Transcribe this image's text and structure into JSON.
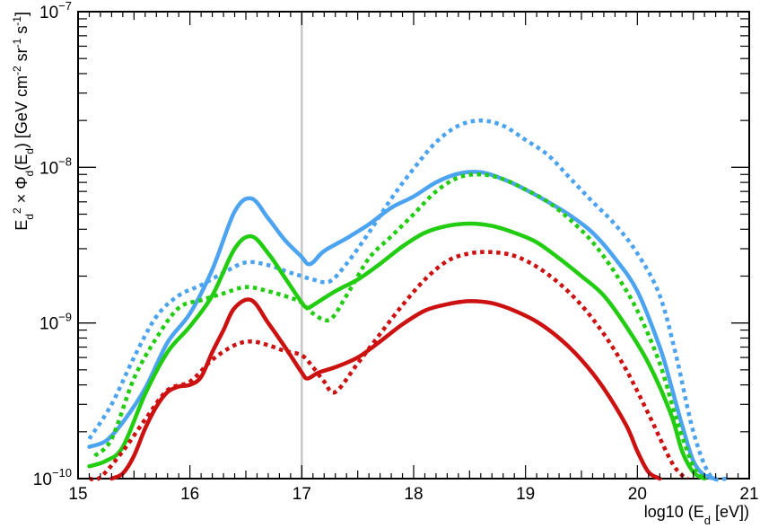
{
  "chart_data": {
    "type": "line",
    "title": "",
    "xlabel": "log10 (E_d [eV])",
    "xlabel_parts": {
      "prefix": "log10 (E",
      "sub": "d",
      "suffix": " [eV])"
    },
    "ylabel": "E_d^2 × Φ_d(E_d) [GeV cm^-2 sr^-1 s^-1]",
    "ylabel_parts": [
      {
        "t": "E",
        "s": ""
      },
      {
        "t": "d",
        "s": "sub"
      },
      {
        "t": "2",
        "s": "sup"
      },
      {
        "t": " × Φ",
        "s": ""
      },
      {
        "t": "d",
        "s": "sub"
      },
      {
        "t": "(E",
        "s": ""
      },
      {
        "t": "d",
        "s": "sub"
      },
      {
        "t": ") [GeV cm",
        "s": ""
      },
      {
        "t": "-2",
        "s": "sup"
      },
      {
        "t": " sr",
        "s": ""
      },
      {
        "t": "-1",
        "s": "sup"
      },
      {
        "t": " s",
        "s": ""
      },
      {
        "t": "-1",
        "s": "sup"
      },
      {
        "t": "]",
        "s": ""
      }
    ],
    "xlim": [
      15,
      21
    ],
    "ylim": [
      1e-10,
      1e-07
    ],
    "yscale": "log",
    "x_ticks": [
      15,
      16,
      17,
      18,
      19,
      20,
      21
    ],
    "x_tick_labels": [
      "15",
      "16",
      "17",
      "18",
      "19",
      "20",
      "21"
    ],
    "y_ticks": [
      {
        "value": 1e-10,
        "base": "10",
        "exp": "−10"
      },
      {
        "value": 1e-09,
        "base": "10",
        "exp": "−9"
      },
      {
        "value": 1e-08,
        "base": "10",
        "exp": "−8"
      },
      {
        "value": 1e-07,
        "base": "10",
        "exp": "−7"
      }
    ],
    "grid": false,
    "legend": "none",
    "vertical_line": {
      "x": 17,
      "color": "#c8c8c8"
    },
    "series": [
      {
        "color": "#4ca3f0",
        "style": "solid",
        "x": [
          15.1,
          15.25,
          15.4,
          15.6,
          15.8,
          16.0,
          16.2,
          16.4,
          16.55,
          16.7,
          16.85,
          17.0,
          17.05,
          17.1,
          17.2,
          17.4,
          17.6,
          17.8,
          18.0,
          18.2,
          18.4,
          18.6,
          18.8,
          19.0,
          19.2,
          19.4,
          19.6,
          19.8,
          20.0,
          20.2,
          20.3,
          20.4,
          20.5,
          20.6,
          20.7
        ],
        "y": [
          1.6e-10,
          1.75e-10,
          2.3e-10,
          3.8e-10,
          7.5e-10,
          1.15e-09,
          2.2e-09,
          5.2e-09,
          6.3e-09,
          4.7e-09,
          3.4e-09,
          2.65e-09,
          2.4e-09,
          2.45e-09,
          2.9e-09,
          3.5e-09,
          4.3e-09,
          5.5e-09,
          6.5e-09,
          8e-09,
          9.1e-09,
          9.3e-09,
          8.4e-09,
          7.2e-09,
          6e-09,
          4.9e-09,
          3.8e-09,
          2.6e-09,
          1.6e-09,
          7e-10,
          4e-10,
          2.2e-10,
          1.3e-10,
          1.05e-10,
          1e-10
        ]
      },
      {
        "color": "#4ca3f0",
        "style": "dotted",
        "x": [
          15.1,
          15.3,
          15.5,
          15.7,
          15.9,
          16.1,
          16.3,
          16.5,
          16.7,
          16.9,
          17.0,
          17.1,
          17.25,
          17.4,
          17.6,
          17.8,
          18.0,
          18.2,
          18.4,
          18.6,
          18.8,
          19.0,
          19.2,
          19.4,
          19.6,
          19.8,
          20.0,
          20.2,
          20.35,
          20.5,
          20.65,
          20.8
        ],
        "y": [
          1.8e-10,
          3e-10,
          6e-10,
          1.1e-09,
          1.5e-09,
          1.75e-09,
          2.1e-09,
          2.45e-09,
          2.35e-09,
          2.1e-09,
          2e-09,
          1.9e-09,
          1.85e-09,
          2.4e-09,
          3.8e-09,
          6.3e-09,
          9.8e-09,
          1.45e-08,
          1.85e-08,
          2e-08,
          1.85e-08,
          1.5e-08,
          1.2e-08,
          8.5e-09,
          6e-09,
          4.3e-09,
          2.8e-09,
          1.5e-09,
          6e-10,
          2e-10,
          1.05e-10,
          1e-10
        ]
      },
      {
        "color": "#22cc11",
        "style": "solid",
        "x": [
          15.1,
          15.25,
          15.4,
          15.6,
          15.8,
          16.0,
          16.2,
          16.4,
          16.55,
          16.7,
          16.85,
          17.0,
          17.05,
          17.1,
          17.3,
          17.5,
          17.7,
          17.9,
          18.1,
          18.3,
          18.5,
          18.7,
          18.9,
          19.1,
          19.3,
          19.5,
          19.7,
          19.9,
          20.1,
          20.3,
          20.4,
          20.5,
          20.6
        ],
        "y": [
          1.2e-10,
          1.3e-10,
          1.6e-10,
          3.5e-10,
          6.5e-10,
          9.5e-10,
          1.5e-09,
          3e-09,
          3.6e-09,
          2.8e-09,
          1.95e-09,
          1.35e-09,
          1.25e-09,
          1.3e-09,
          1.6e-09,
          1.9e-09,
          2.4e-09,
          3.1e-09,
          3.8e-09,
          4.2e-09,
          4.35e-09,
          4.2e-09,
          3.8e-09,
          3.3e-09,
          2.6e-09,
          2e-09,
          1.5e-09,
          9.5e-10,
          5.5e-10,
          2.6e-10,
          1.5e-10,
          1.1e-10,
          1e-10
        ]
      },
      {
        "color": "#22cc11",
        "style": "dotted",
        "x": [
          15.15,
          15.3,
          15.5,
          15.7,
          15.9,
          16.1,
          16.3,
          16.5,
          16.7,
          16.9,
          17.0,
          17.1,
          17.25,
          17.4,
          17.6,
          17.8,
          18.0,
          18.2,
          18.4,
          18.6,
          18.8,
          19.0,
          19.2,
          19.4,
          19.6,
          19.8,
          20.0,
          20.2,
          20.35,
          20.5,
          20.6
        ],
        "y": [
          1.4e-10,
          1.8e-10,
          4.4e-10,
          8e-10,
          1.25e-09,
          1.4e-09,
          1.55e-09,
          1.7e-09,
          1.6e-09,
          1.45e-09,
          1.35e-09,
          1.15e-09,
          1.05e-09,
          1.5e-09,
          2.6e-09,
          3.6e-09,
          5e-09,
          7e-09,
          8.6e-09,
          9e-09,
          8.4e-09,
          7.2e-09,
          6e-09,
          4.6e-09,
          3.3e-09,
          2.1e-09,
          1.2e-09,
          5.5e-10,
          2.4e-10,
          1.2e-10,
          1e-10
        ]
      },
      {
        "color": "#cc1111",
        "style": "solid",
        "x": [
          15.3,
          15.4,
          15.5,
          15.6,
          15.7,
          15.8,
          15.9,
          16.0,
          16.1,
          16.2,
          16.3,
          16.4,
          16.55,
          16.7,
          16.85,
          17.0,
          17.05,
          17.15,
          17.3,
          17.5,
          17.7,
          17.9,
          18.1,
          18.3,
          18.5,
          18.7,
          18.9,
          19.1,
          19.3,
          19.5,
          19.7,
          19.9,
          20.0,
          20.1,
          20.2
        ],
        "y": [
          1e-10,
          1.08e-10,
          1.4e-10,
          2.1e-10,
          2.9e-10,
          3.6e-10,
          3.9e-10,
          4e-10,
          4.5e-10,
          6.5e-10,
          9e-10,
          1.25e-09,
          1.4e-09,
          1e-09,
          7e-10,
          4.8e-10,
          4.4e-10,
          4.8e-10,
          5.2e-10,
          6e-10,
          7.6e-10,
          9.8e-10,
          1.2e-09,
          1.32e-09,
          1.38e-09,
          1.34e-09,
          1.2e-09,
          1.02e-09,
          8e-10,
          5.8e-10,
          3.8e-10,
          2.2e-10,
          1.5e-10,
          1.1e-10,
          1e-10
        ]
      },
      {
        "color": "#cc1111",
        "style": "dotted",
        "x": [
          15.1,
          15.2,
          15.4,
          15.6,
          15.8,
          16.0,
          16.2,
          16.4,
          16.55,
          16.7,
          16.85,
          17.0,
          17.1,
          17.2,
          17.3,
          17.5,
          17.7,
          17.9,
          18.1,
          18.3,
          18.5,
          18.7,
          18.9,
          19.1,
          19.3,
          19.5,
          19.7,
          19.9,
          20.1,
          20.3,
          20.4,
          20.45
        ],
        "y": [
          1e-10,
          1.02e-10,
          1.5e-10,
          2.4e-10,
          3.7e-10,
          4.2e-10,
          5.8e-10,
          7.2e-10,
          7.6e-10,
          7.2e-10,
          6.6e-10,
          6.2e-10,
          5.2e-10,
          4.2e-10,
          3.6e-10,
          5.5e-10,
          8.5e-10,
          1.3e-09,
          1.9e-09,
          2.5e-09,
          2.8e-09,
          2.85e-09,
          2.7e-09,
          2.3e-09,
          1.8e-09,
          1.3e-09,
          8.5e-10,
          5e-10,
          2.6e-10,
          1.3e-10,
          1.05e-10,
          1e-10
        ]
      }
    ]
  }
}
